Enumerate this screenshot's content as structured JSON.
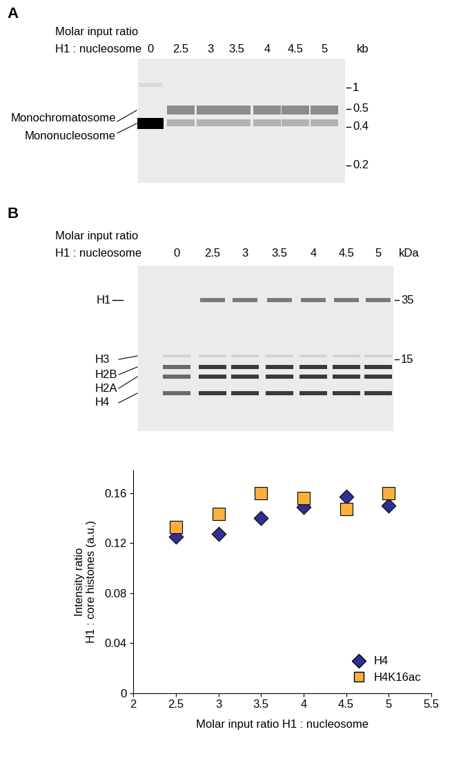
{
  "panel_a": {
    "letter": "A",
    "header": [
      "Molar input ratio",
      "H1 : nucleosome"
    ],
    "lanes": [
      0,
      2.5,
      3,
      3.5,
      4,
      4.5,
      5
    ],
    "unit": "kb",
    "markers": [
      1,
      0.5,
      0.4,
      0.2
    ],
    "bands": [
      "Monochromatosome",
      "Mononucleosome"
    ]
  },
  "panel_b_gel": {
    "letter": "B",
    "header": [
      "Molar input ratio",
      "H1 : nucleosome"
    ],
    "lanes": [
      0,
      2.5,
      3,
      3.5,
      4,
      4.5,
      5
    ],
    "unit": "kDa",
    "markers": [
      35,
      15
    ],
    "bands": [
      "H1",
      "H3",
      "H2B",
      "H2A",
      "H4"
    ]
  },
  "chart_data": {
    "type": "scatter",
    "xlabel": "Molar input ratio H1 : nucleosome",
    "ylabel": "Intensity ratio\nH1 : core histones (a.u.)",
    "x": [
      2.5,
      3,
      3.5,
      4,
      4.5,
      5
    ],
    "series": [
      {
        "name": "H4",
        "color": "#2e3192",
        "marker": "diamond",
        "values": [
          0.125,
          0.127,
          0.14,
          0.149,
          0.157,
          0.15
        ]
      },
      {
        "name": "H4K16ac",
        "color": "#f9b040",
        "marker": "square",
        "values": [
          0.133,
          0.143,
          0.16,
          0.156,
          0.147,
          0.16
        ]
      }
    ],
    "xlim": [
      2,
      5.5
    ],
    "xticks": [
      2,
      2.5,
      3,
      3.5,
      4,
      4.5,
      5,
      5.5
    ],
    "ylim": [
      0,
      0.178
    ],
    "yticks": [
      0,
      0.04,
      0.08,
      0.12,
      0.16
    ],
    "legend": "lower right",
    "grid": false
  }
}
